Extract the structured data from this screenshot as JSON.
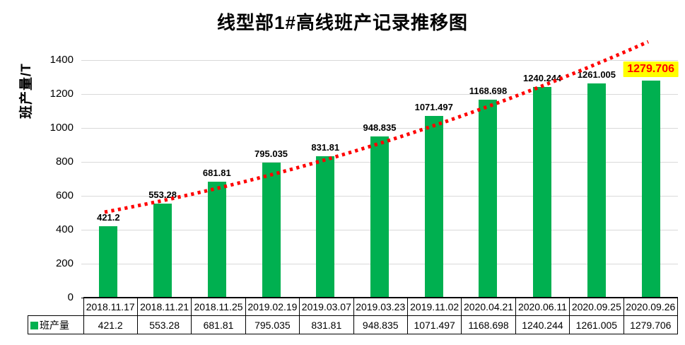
{
  "title": "线型部1#高线班产记录推移图",
  "y_axis": {
    "title": "班产量/T",
    "ticks": [
      0,
      200,
      400,
      600,
      800,
      1000,
      1200,
      1400
    ]
  },
  "legend": {
    "label": "班产量"
  },
  "chart_data": {
    "type": "bar",
    "title": "线型部1#高线班产记录推移图",
    "ylabel": "班产量/T",
    "ylim": [
      0,
      1400
    ],
    "grid": true,
    "legend_position": "table-left",
    "categories": [
      "2018.11.17",
      "2018.11.21",
      "2018.11.25",
      "2019.02.19",
      "2019.03.07",
      "2019.03.23",
      "2019.11.02",
      "2020.04.21",
      "2020.06.11",
      "2020.09.25",
      "2020.09.26"
    ],
    "series": [
      {
        "name": "班产量",
        "values": [
          421.2,
          553.28,
          681.81,
          795.035,
          831.81,
          948.835,
          1071.497,
          1168.698,
          1240.244,
          1261.005,
          1279.706
        ]
      }
    ],
    "data_labels": [
      "421.2",
      "553.28",
      "681.81",
      "795.035",
      "831.81",
      "948.835",
      "1071.497",
      "1168.698",
      "1240.244",
      "1261.005",
      "1279.706"
    ],
    "highlight_last_label": true,
    "trendline": {
      "style": "dotted",
      "shape": "power-curve"
    }
  },
  "colors": {
    "bar": "#00B050",
    "trend": "#FF0000",
    "gridline": "#D9D9D9",
    "highlight_bg": "#FFFF00",
    "highlight_text": "#FF0000",
    "table_border": "#000000",
    "text": "#000000"
  }
}
